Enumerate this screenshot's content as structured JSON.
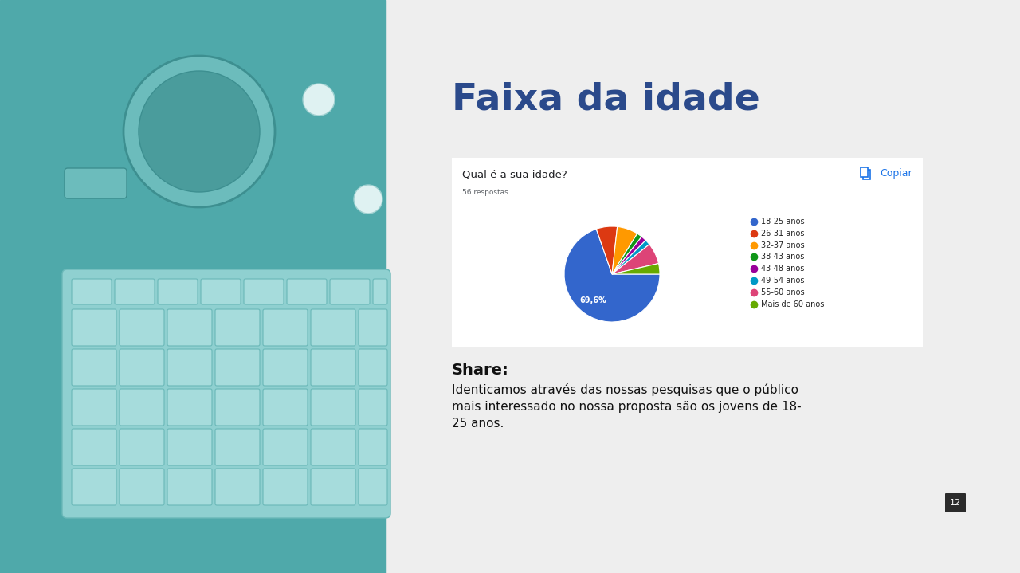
{
  "slide": {
    "title": "Faixa da idade",
    "share": {
      "heading": "Share:",
      "lines": [
        "Identicamos através das nossas pesquisas que o público",
        "mais interessado no nossa proposta são os jovens de 18-",
        "25 anos."
      ]
    },
    "page_number": "12"
  },
  "chart_data": {
    "type": "pie",
    "title": "Qual é a sua idade?",
    "subtitle": "56 respostas",
    "annotations": [
      "Copiar"
    ],
    "categories": [
      "18-25 anos",
      "26-31 anos",
      "32-37 anos",
      "38-43 anos",
      "43-48 anos",
      "49-54 anos",
      "55-60 anos",
      "Mais de 60 anos"
    ],
    "values": [
      69.6,
      7.1,
      7.1,
      1.8,
      1.8,
      1.8,
      7.1,
      3.6
    ],
    "value_labels": [
      "69,6%",
      null,
      null,
      null,
      null,
      null,
      null,
      null
    ],
    "colors": [
      "#3366cc",
      "#dc3912",
      "#ff9900",
      "#109618",
      "#990099",
      "#0099c6",
      "#dd4477",
      "#66aa00"
    ],
    "data_labels": true
  }
}
